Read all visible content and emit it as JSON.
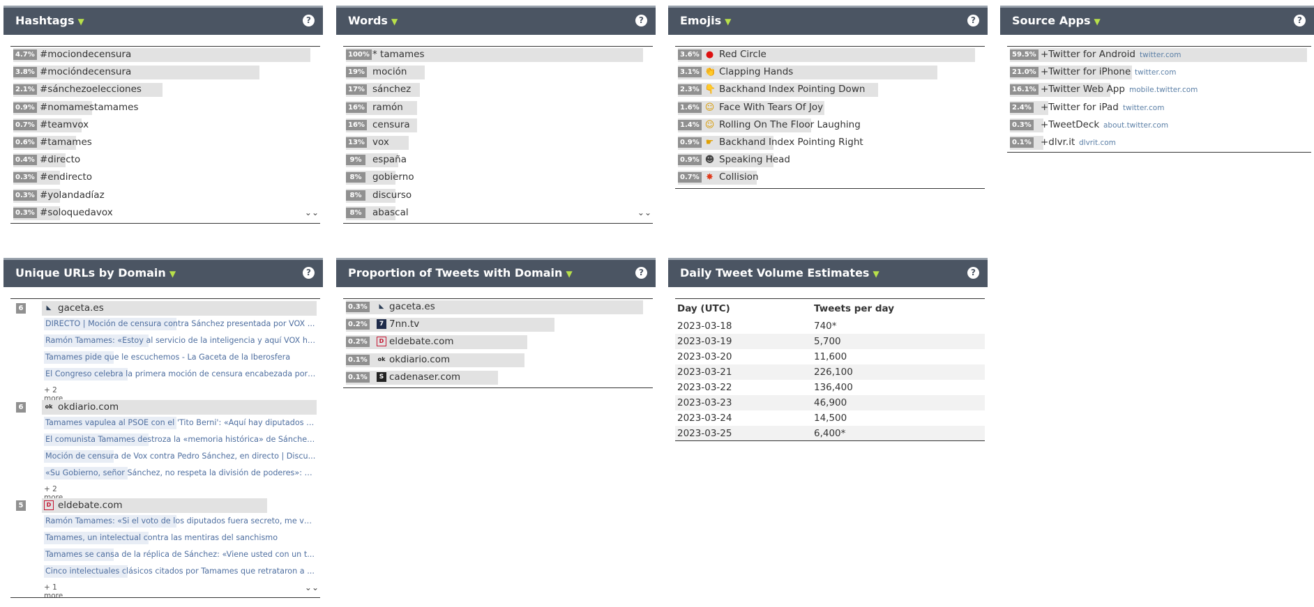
{
  "panels": {
    "hashtags": {
      "title": "Hashtags",
      "help": "?",
      "more": "»",
      "items": [
        {
          "pct": "4.7%",
          "label": "#mociondecensura",
          "frac": 1.0
        },
        {
          "pct": "3.8%",
          "label": "#mocióndecensura",
          "frac": 0.81
        },
        {
          "pct": "2.1%",
          "label": "#sánchezoelecciones",
          "frac": 0.45
        },
        {
          "pct": "0.9%",
          "label": "#nomamestamames",
          "frac": 0.19
        },
        {
          "pct": "0.7%",
          "label": "#teamvox",
          "frac": 0.15
        },
        {
          "pct": "0.6%",
          "label": "#tamames",
          "frac": 0.13
        },
        {
          "pct": "0.4%",
          "label": "#directo",
          "frac": 0.09
        },
        {
          "pct": "0.3%",
          "label": "#endirecto",
          "frac": 0.07
        },
        {
          "pct": "0.3%",
          "label": "#yolandadíaz",
          "frac": 0.07
        },
        {
          "pct": "0.3%",
          "label": "#soloquedavox",
          "frac": 0.07
        }
      ]
    },
    "words": {
      "title": "Words",
      "help": "?",
      "more": "»",
      "items": [
        {
          "pct": "100%",
          "label": "* tamames",
          "frac": 1.0
        },
        {
          "pct": "19%",
          "label": "moción",
          "frac": 0.19
        },
        {
          "pct": "17%",
          "label": "sánchez",
          "frac": 0.17
        },
        {
          "pct": "16%",
          "label": "ramón",
          "frac": 0.16
        },
        {
          "pct": "16%",
          "label": "censura",
          "frac": 0.16
        },
        {
          "pct": "13%",
          "label": "vox",
          "frac": 0.13
        },
        {
          "pct": "9%",
          "label": "españa",
          "frac": 0.09
        },
        {
          "pct": "8%",
          "label": "gobierno",
          "frac": 0.08
        },
        {
          "pct": "8%",
          "label": "discurso",
          "frac": 0.08
        },
        {
          "pct": "8%",
          "label": "abascal",
          "frac": 0.08
        }
      ]
    },
    "emojis": {
      "title": "Emojis",
      "help": "?",
      "items": [
        {
          "pct": "3.6%",
          "label": "Red Circle",
          "icon": "red-circle",
          "glyph": "●",
          "color": "#dd1111",
          "frac": 1.0
        },
        {
          "pct": "3.1%",
          "label": "Clapping Hands",
          "icon": "clapping-hands",
          "glyph": "👏",
          "color": "#e0a000",
          "frac": 0.86
        },
        {
          "pct": "2.3%",
          "label": "Backhand Index Pointing Down",
          "icon": "pointing-down",
          "glyph": "👇",
          "color": "#e0a000",
          "frac": 0.64
        },
        {
          "pct": "1.6%",
          "label": "Face With Tears Of Joy",
          "icon": "tears-of-joy",
          "glyph": "☺",
          "color": "#d89a00",
          "frac": 0.44
        },
        {
          "pct": "1.4%",
          "label": "Rolling On The Floor Laughing",
          "icon": "rofl",
          "glyph": "☺",
          "color": "#d89a00",
          "frac": 0.39
        },
        {
          "pct": "0.9%",
          "label": "Backhand Index Pointing Right",
          "icon": "pointing-right",
          "glyph": "☛",
          "color": "#e0a000",
          "frac": 0.25
        },
        {
          "pct": "0.9%",
          "label": "Speaking Head",
          "icon": "speaking-head",
          "glyph": "☻",
          "color": "#444444",
          "frac": 0.25
        },
        {
          "pct": "0.7%",
          "label": "Collision",
          "icon": "collision",
          "glyph": "✸",
          "color": "#e03b1c",
          "frac": 0.19
        }
      ]
    },
    "apps": {
      "title": "Source Apps",
      "help": "?",
      "items": [
        {
          "pct": "59.5%",
          "label": "+Twitter for Android",
          "host": "twitter.com",
          "frac": 1.0
        },
        {
          "pct": "21.0%",
          "label": "+Twitter for iPhone",
          "host": "twitter.com",
          "frac": 0.35
        },
        {
          "pct": "16.1%",
          "label": "+Twitter Web App",
          "host": "mobile.twitter.com",
          "frac": 0.27
        },
        {
          "pct": "2.4%",
          "label": "+Twitter for iPad",
          "host": "twitter.com",
          "frac": 0.04
        },
        {
          "pct": "0.3%",
          "label": "+TweetDeck",
          "host": "about.twitter.com",
          "frac": 0.0
        },
        {
          "pct": "0.1%",
          "label": "+dlvr.it",
          "host": "dlvrit.com",
          "frac": 0.0
        }
      ]
    },
    "urls": {
      "title": "Unique URLs by Domain",
      "help": "?",
      "more": "»",
      "groups": [
        {
          "count": "6",
          "domain": "gaceta.es",
          "icon": "gaceta-icon",
          "frac": 1.0,
          "links": [
            "DIRECTO | Moción de censura contra Sánchez presentada por VOX ...",
            "Ramón Tamames: «Estoy al servicio de la inteligencia y aquí VOX ha...",
            "Tamames pide que le escuchemos - La Gaceta de la Iberosfera",
            "El Congreso celebra la primera moción de censura encabezada por ..."
          ],
          "more": "+ 2 more"
        },
        {
          "count": "6",
          "domain": "okdiario.com",
          "icon": "okdiario-icon",
          "frac": 1.0,
          "links": [
            "Tamames vapulea al PSOE con el 'Tito Berni': «Aquí hay diputados c...",
            "El comunista Tamames destroza la «memoria histórica» de Sánchez...",
            "Moción de censura de Vox contra Pedro Sánchez, en directo | Discu...",
            "«Su Gobierno, señor Sánchez, no respeta la división de poderes»: el..."
          ],
          "more": "+ 2 more"
        },
        {
          "count": "5",
          "domain": "eldebate.com",
          "icon": "eldebate-icon",
          "frac": 0.82,
          "links": [
            "Ramón Tamames: «Si el voto de los diputados fuera secreto, me vot...",
            "Tamames, un intelectual contra las mentiras del sanchismo",
            "Tamames se cansa de la réplica de Sánchez: «Viene usted con un t...",
            "Cinco intelectuales clásicos citados por Tamames que retrataron a ..."
          ],
          "more": "+ 1 more"
        }
      ]
    },
    "proportion": {
      "title": "Proportion of Tweets with Domain",
      "help": "?",
      "items": [
        {
          "pct": "0.3%",
          "label": "gaceta.es",
          "icon": "gaceta-icon",
          "frac": 1.0
        },
        {
          "pct": "0.2%",
          "label": "7nn.tv",
          "icon": "7nn-icon",
          "frac": 0.67
        },
        {
          "pct": "0.2%",
          "label": "eldebate.com",
          "icon": "eldebate-icon",
          "frac": 0.57
        },
        {
          "pct": "0.1%",
          "label": "okdiario.com",
          "icon": "okdiario-icon",
          "frac": 0.56
        },
        {
          "pct": "0.1%",
          "label": "cadenaser.com",
          "icon": "cadenaser-icon",
          "frac": 0.46
        }
      ]
    },
    "volume": {
      "title": "Daily Tweet Volume Estimates",
      "help": "?",
      "col_day": "Day (UTC)",
      "col_count": "Tweets per day",
      "rows": [
        {
          "day": "2023-03-18",
          "count": "740*"
        },
        {
          "day": "2023-03-19",
          "count": "5,700"
        },
        {
          "day": "2023-03-20",
          "count": "11,600"
        },
        {
          "day": "2023-03-21",
          "count": "226,100"
        },
        {
          "day": "2023-03-22",
          "count": "136,400"
        },
        {
          "day": "2023-03-23",
          "count": "46,900"
        },
        {
          "day": "2023-03-24",
          "count": "14,500"
        },
        {
          "day": "2023-03-25",
          "count": "6,400*"
        }
      ]
    }
  }
}
